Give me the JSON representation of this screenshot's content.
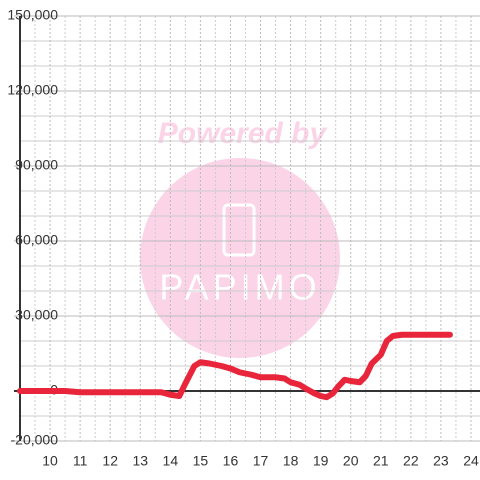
{
  "chart_data": {
    "type": "line",
    "xlim": [
      9,
      24.3
    ],
    "xticks": [
      10,
      11,
      12,
      13,
      14,
      15,
      16,
      17,
      18,
      19,
      20,
      21,
      22,
      23,
      24
    ],
    "x_minor_ticks": [
      9.5,
      10.5,
      11.5,
      12.5,
      13.5,
      14.5,
      15.5,
      16.5,
      17.5,
      18.5,
      19.5,
      20.5,
      21.5,
      22.5,
      23.5
    ],
    "ylim": [
      -20000,
      150000
    ],
    "yticks": [
      {
        "value": -20000,
        "label": "-20,000"
      },
      0,
      {
        "value": 30000,
        "label": "30,000"
      },
      {
        "value": 60000,
        "label": "60,000"
      },
      {
        "value": 90000,
        "label": "90,000"
      },
      {
        "value": 120000,
        "label": "120,000"
      },
      {
        "value": 150000,
        "label": "150,000"
      }
    ],
    "y_minor_ticks": [
      -10000,
      10000,
      20000,
      40000,
      50000,
      70000,
      80000,
      100000,
      110000,
      130000,
      140000
    ],
    "grid": true,
    "watermark": {
      "text": "Powered by",
      "logo": "PAPIMO"
    },
    "series": [
      {
        "color": "#e8253a",
        "x": [
          9,
          10.5,
          11,
          12,
          13,
          13.7,
          14,
          14.3,
          14.5,
          14.8,
          15,
          15.3,
          15.7,
          16,
          16.3,
          16.7,
          17,
          17.5,
          17.8,
          18,
          18.3,
          18.5,
          18.8,
          19,
          19.2,
          19.4,
          19.6,
          19.8,
          20,
          20.3,
          20.5,
          20.7,
          21,
          21.2,
          21.4,
          21.7,
          22,
          23.3
        ],
        "values": [
          0,
          0,
          -500,
          -500,
          -500,
          -500,
          -1500,
          -2000,
          3000,
          10000,
          11500,
          11000,
          10000,
          9000,
          7500,
          6500,
          5500,
          5500,
          5000,
          3500,
          2500,
          1000,
          -1000,
          -2000,
          -2500,
          -1000,
          2000,
          4500,
          4000,
          3500,
          6000,
          11000,
          14500,
          20000,
          22000,
          22500,
          22500,
          22500
        ]
      }
    ]
  }
}
